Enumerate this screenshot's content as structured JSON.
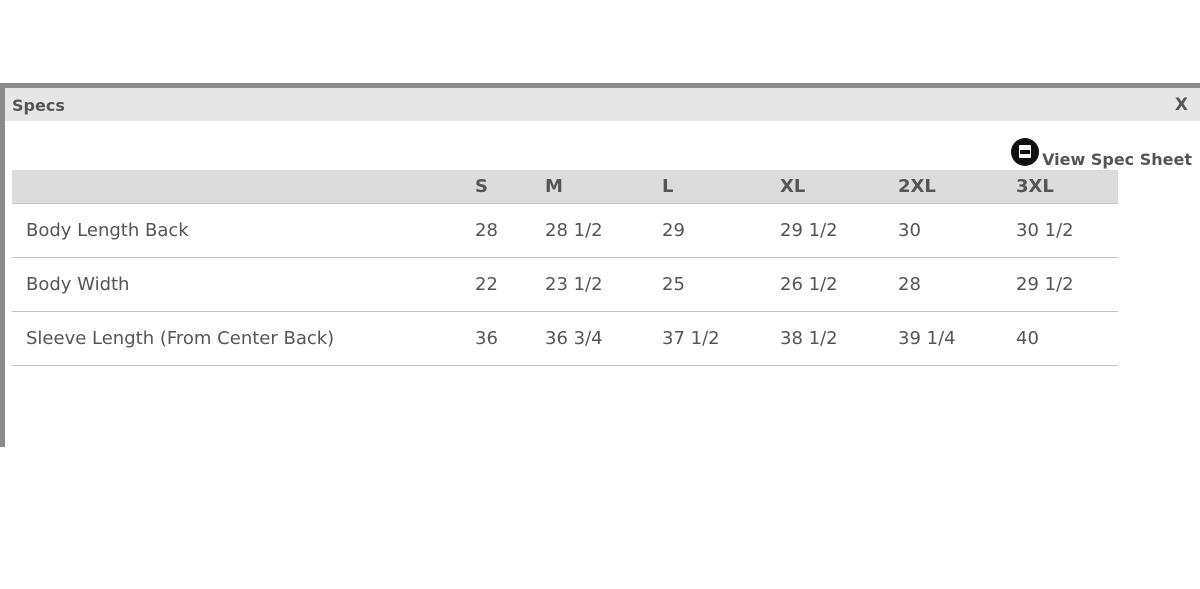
{
  "dialog": {
    "title": "Specs",
    "close_label": "X",
    "spec_sheet_link": "View Spec Sheet",
    "spec_sheet_icon": "pdf-icon"
  },
  "table": {
    "headers": [
      "",
      "S",
      "M",
      "L",
      "XL",
      "2XL",
      "3XL"
    ],
    "rows": [
      {
        "label": "Body Length Back",
        "values": [
          "28",
          "28 1/2",
          "29",
          "29 1/2",
          "30",
          "30 1/2"
        ]
      },
      {
        "label": "Body Width",
        "values": [
          "22",
          "23 1/2",
          "25",
          "26 1/2",
          "28",
          "29 1/2"
        ]
      },
      {
        "label": "Sleeve Length (From Center Back)",
        "values": [
          "36",
          "36 3/4",
          "37 1/2",
          "38 1/2",
          "39 1/4",
          "40"
        ]
      }
    ]
  }
}
